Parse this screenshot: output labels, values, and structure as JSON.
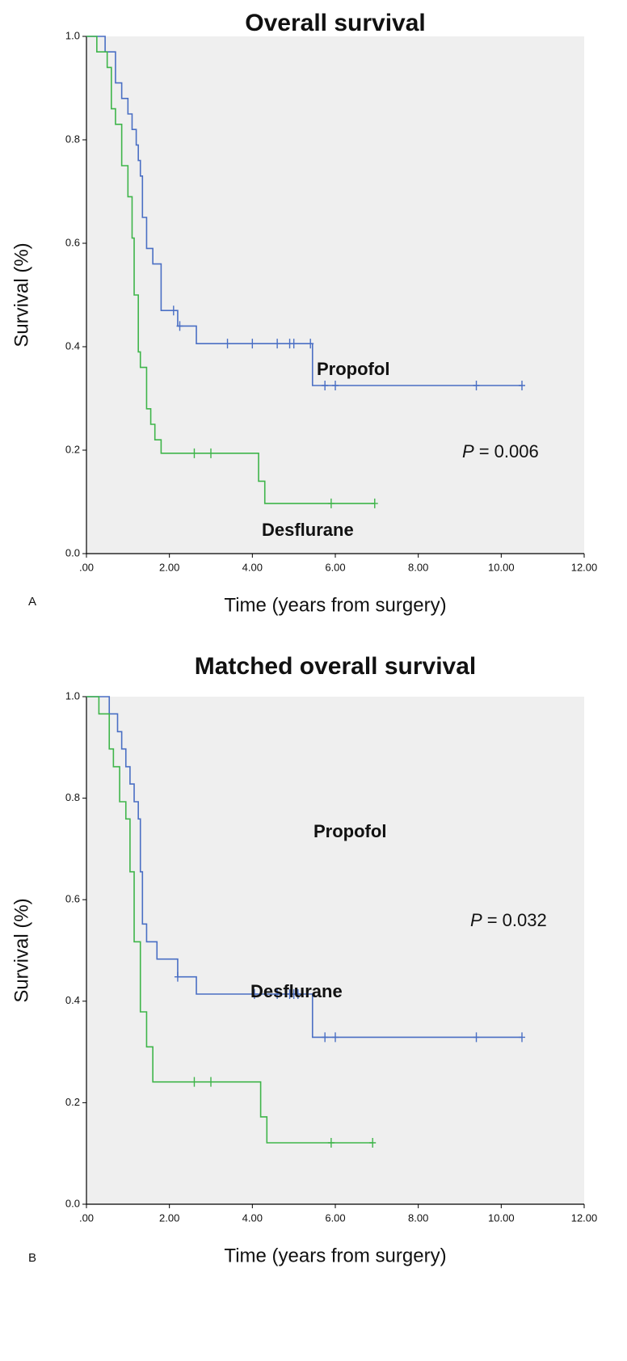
{
  "chart_data": [
    {
      "type": "step",
      "panel": "A",
      "title": "Overall survival",
      "x_label": "Time (years from surgery)",
      "y_label": "Survival (%)",
      "xlim": [
        0,
        12
      ],
      "ylim": [
        0,
        1
      ],
      "background": "#efefef",
      "xticks": [
        {
          "value": 0,
          "label": ".00"
        },
        {
          "value": 2,
          "label": "2.00"
        },
        {
          "value": 4,
          "label": "4.00"
        },
        {
          "value": 6,
          "label": "6.00"
        },
        {
          "value": 8,
          "label": "8.00"
        },
        {
          "value": 10,
          "label": "10.00"
        },
        {
          "value": 12,
          "label": "12.00"
        }
      ],
      "yticks": [
        {
          "value": 0,
          "label": "0.0"
        },
        {
          "value": 0.2,
          "label": "0.2"
        },
        {
          "value": 0.4,
          "label": "0.4"
        },
        {
          "value": 0.6,
          "label": "0.6"
        },
        {
          "value": 0.8,
          "label": "0.8"
        },
        {
          "value": 1,
          "label": "1.0"
        }
      ],
      "series": [
        {
          "name": "Propofol",
          "color": "#4a6fc4",
          "x": [
            0,
            0.45,
            0.7,
            0.85,
            1.0,
            1.1,
            1.2,
            1.25,
            1.3,
            1.35,
            1.45,
            1.6,
            1.8,
            2.2,
            2.65,
            5.45
          ],
          "values": [
            1.0,
            0.97,
            0.91,
            0.88,
            0.85,
            0.82,
            0.79,
            0.76,
            0.73,
            0.65,
            0.59,
            0.56,
            0.47,
            0.44,
            0.406,
            0.325
          ],
          "censored": {
            "x": [
              2.1,
              2.25,
              3.4,
              4.0,
              4.6,
              4.9,
              5.0,
              5.4,
              5.75,
              6.0,
              9.4,
              10.5
            ],
            "values": [
              0.47,
              0.44,
              0.406,
              0.406,
              0.406,
              0.406,
              0.406,
              0.406,
              0.325,
              0.325,
              0.325,
              0.325
            ]
          }
        },
        {
          "name": "Desflurane",
          "color": "#3fb54a",
          "x": [
            0,
            0.25,
            0.5,
            0.6,
            0.7,
            0.85,
            1.0,
            1.1,
            1.15,
            1.25,
            1.3,
            1.45,
            1.55,
            1.65,
            1.8,
            4.15,
            4.3
          ],
          "values": [
            1.0,
            0.97,
            0.94,
            0.86,
            0.83,
            0.75,
            0.69,
            0.61,
            0.5,
            0.39,
            0.36,
            0.28,
            0.25,
            0.22,
            0.194,
            0.14,
            0.097
          ],
          "censored": {
            "x": [
              2.6,
              3.0,
              5.9,
              6.95
            ],
            "values": [
              0.194,
              0.194,
              0.097,
              0.097
            ]
          }
        }
      ],
      "p_value": {
        "symbol": "P",
        "text": "= 0.006"
      }
    },
    {
      "type": "step",
      "panel": "B",
      "title": "Matched overall survival",
      "x_label": "Time (years from surgery)",
      "y_label": "Survival (%)",
      "xlim": [
        0,
        12
      ],
      "ylim": [
        0,
        1
      ],
      "background": "#efefef",
      "xticks": [
        {
          "value": 0,
          "label": ".00"
        },
        {
          "value": 2,
          "label": "2.00"
        },
        {
          "value": 4,
          "label": "4.00"
        },
        {
          "value": 6,
          "label": "6.00"
        },
        {
          "value": 8,
          "label": "8.00"
        },
        {
          "value": 10,
          "label": "10.00"
        },
        {
          "value": 12,
          "label": "12.00"
        }
      ],
      "yticks": [
        {
          "value": 0,
          "label": "0.0"
        },
        {
          "value": 0.2,
          "label": "0.2"
        },
        {
          "value": 0.4,
          "label": "0.4"
        },
        {
          "value": 0.6,
          "label": "0.6"
        },
        {
          "value": 0.8,
          "label": "0.8"
        },
        {
          "value": 1,
          "label": "1.0"
        }
      ],
      "series": [
        {
          "name": "Propofol",
          "color": "#4a6fc4",
          "x": [
            0,
            0.55,
            0.75,
            0.85,
            0.95,
            1.05,
            1.15,
            1.25,
            1.3,
            1.35,
            1.45,
            1.7,
            2.2,
            2.65,
            5.45
          ],
          "values": [
            1.0,
            0.966,
            0.931,
            0.897,
            0.862,
            0.828,
            0.793,
            0.759,
            0.655,
            0.552,
            0.517,
            0.483,
            0.448,
            0.414,
            0.329
          ],
          "censored": {
            "x": [
              2.2,
              4.05,
              4.6,
              4.9,
              5.0,
              5.1,
              5.75,
              6.0,
              9.4,
              10.5
            ],
            "values": [
              0.448,
              0.414,
              0.414,
              0.414,
              0.414,
              0.414,
              0.329,
              0.329,
              0.329,
              0.329
            ]
          }
        },
        {
          "name": "Desflurane",
          "color": "#3fb54a",
          "x": [
            0,
            0.3,
            0.55,
            0.65,
            0.8,
            0.95,
            1.05,
            1.15,
            1.3,
            1.45,
            1.6,
            4.2,
            4.35
          ],
          "values": [
            1.0,
            0.966,
            0.897,
            0.862,
            0.793,
            0.759,
            0.655,
            0.517,
            0.379,
            0.31,
            0.241,
            0.172,
            0.121
          ],
          "censored": {
            "x": [
              2.6,
              3.0,
              5.9,
              6.9
            ],
            "values": [
              0.241,
              0.241,
              0.121,
              0.121
            ]
          }
        }
      ],
      "p_value": {
        "symbol": "P",
        "text": "= 0.032"
      }
    }
  ]
}
